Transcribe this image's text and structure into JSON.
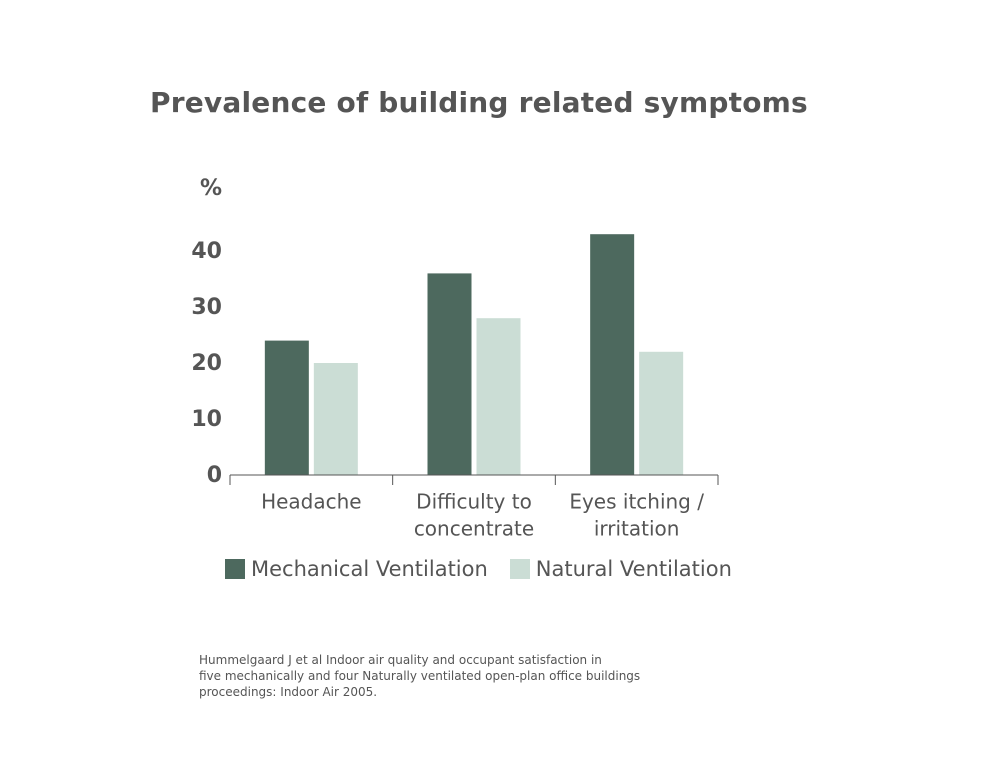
{
  "chart_data": {
    "type": "bar",
    "title": "Prevalence of building related symptoms",
    "ylabel": "%",
    "xlabel": "",
    "ylim": [
      0,
      45
    ],
    "yticks": [
      "0",
      "10",
      "20",
      "30",
      "40"
    ],
    "categories": [
      [
        "Headache"
      ],
      [
        "Difficulty to",
        "concentrate"
      ],
      [
        "Eyes itching /",
        "irritation"
      ]
    ],
    "series": [
      {
        "name": "Mechanical Ventilation",
        "color": "#4d695e",
        "values": [
          24,
          36,
          43
        ]
      },
      {
        "name": "Natural Ventilation",
        "color": "#cbddd5",
        "values": [
          20,
          28,
          22
        ]
      }
    ],
    "grid": false,
    "legend": "bottom"
  },
  "source": {
    "lines": [
      "Hummelgaard J et al Indoor air quality and occupant satisfaction in",
      "five mechanically and four Naturally ventilated open-plan office buildings",
      "proceedings: Indoor Air 2005."
    ]
  }
}
